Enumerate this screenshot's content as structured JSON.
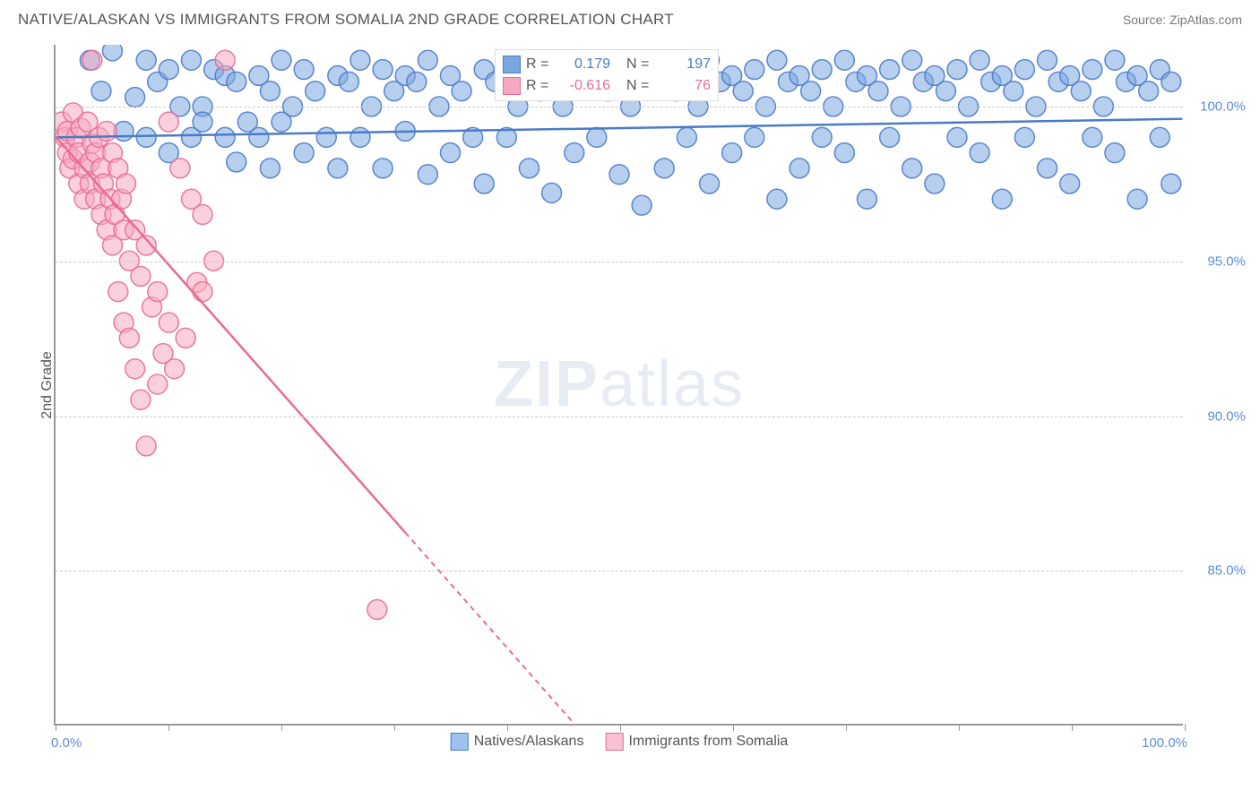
{
  "header": {
    "title": "NATIVE/ALASKAN VS IMMIGRANTS FROM SOMALIA 2ND GRADE CORRELATION CHART",
    "source_prefix": "Source: ",
    "source_link": "ZipAtlas.com"
  },
  "watermark": {
    "zip": "ZIP",
    "atlas": "atlas"
  },
  "chart": {
    "type": "scatter",
    "y_axis_title": "2nd Grade",
    "background_color": "#ffffff",
    "grid_color": "#cccccc",
    "border_color": "#999999",
    "xlim": [
      0,
      100
    ],
    "ylim": [
      80,
      102
    ],
    "xtick_positions": [
      0,
      10,
      20,
      30,
      40,
      50,
      60,
      70,
      80,
      90,
      100
    ],
    "xtick_labels": {
      "0": "0.0%",
      "100": "100.0%"
    },
    "ytick_positions": [
      85,
      90,
      95,
      100
    ],
    "ytick_labels": {
      "85": "85.0%",
      "90": "90.0%",
      "95": "95.0%",
      "100": "100.0%"
    },
    "tick_label_color": "#5b8dd6",
    "tick_label_fontsize": 15,
    "marker_radius": 11,
    "marker_opacity": 0.55,
    "marker_stroke_opacity": 0.9,
    "series": [
      {
        "name": "Natives/Alaskans",
        "color_fill": "#7ba7e0",
        "color_stroke": "#4a7bc8",
        "r_value": "0.179",
        "n_value": "197",
        "trend": {
          "x1": 0,
          "y1": 99.0,
          "x2": 100,
          "y2": 99.6,
          "dashed_from_x": null
        },
        "points": [
          [
            3,
            101.5
          ],
          [
            4,
            100.5
          ],
          [
            5,
            101.8
          ],
          [
            6,
            99.2
          ],
          [
            7,
            100.3
          ],
          [
            8,
            101.5
          ],
          [
            8,
            99.0
          ],
          [
            9,
            100.8
          ],
          [
            10,
            101.2
          ],
          [
            10,
            98.5
          ],
          [
            11,
            100.0
          ],
          [
            12,
            101.5
          ],
          [
            12,
            99.0
          ],
          [
            13,
            100.0
          ],
          [
            13,
            99.5
          ],
          [
            14,
            101.2
          ],
          [
            15,
            101.0
          ],
          [
            15,
            99.0
          ],
          [
            16,
            100.8
          ],
          [
            16,
            98.2
          ],
          [
            17,
            99.5
          ],
          [
            18,
            101.0
          ],
          [
            18,
            99.0
          ],
          [
            19,
            100.5
          ],
          [
            19,
            98.0
          ],
          [
            20,
            101.5
          ],
          [
            20,
            99.5
          ],
          [
            21,
            100.0
          ],
          [
            22,
            101.2
          ],
          [
            22,
            98.5
          ],
          [
            23,
            100.5
          ],
          [
            24,
            99.0
          ],
          [
            25,
            101.0
          ],
          [
            25,
            98.0
          ],
          [
            26,
            100.8
          ],
          [
            27,
            101.5
          ],
          [
            27,
            99.0
          ],
          [
            28,
            100.0
          ],
          [
            29,
            101.2
          ],
          [
            29,
            98.0
          ],
          [
            30,
            100.5
          ],
          [
            31,
            101.0
          ],
          [
            31,
            99.2
          ],
          [
            32,
            100.8
          ],
          [
            33,
            101.5
          ],
          [
            33,
            97.8
          ],
          [
            34,
            100.0
          ],
          [
            35,
            101.0
          ],
          [
            35,
            98.5
          ],
          [
            36,
            100.5
          ],
          [
            37,
            99.0
          ],
          [
            38,
            101.2
          ],
          [
            38,
            97.5
          ],
          [
            39,
            100.8
          ],
          [
            40,
            101.5
          ],
          [
            40,
            99.0
          ],
          [
            41,
            100.0
          ],
          [
            42,
            101.0
          ],
          [
            42,
            98.0
          ],
          [
            43,
            100.5
          ],
          [
            44,
            101.2
          ],
          [
            44,
            97.2
          ],
          [
            45,
            100.0
          ],
          [
            46,
            101.5
          ],
          [
            46,
            98.5
          ],
          [
            47,
            100.8
          ],
          [
            48,
            101.0
          ],
          [
            48,
            99.0
          ],
          [
            49,
            100.5
          ],
          [
            50,
            101.2
          ],
          [
            50,
            97.8
          ],
          [
            51,
            100.0
          ],
          [
            52,
            101.5
          ],
          [
            52,
            96.8
          ],
          [
            53,
            100.8
          ],
          [
            54,
            101.0
          ],
          [
            54,
            98.0
          ],
          [
            55,
            100.5
          ],
          [
            56,
            101.2
          ],
          [
            56,
            99.0
          ],
          [
            57,
            100.0
          ],
          [
            58,
            101.5
          ],
          [
            58,
            97.5
          ],
          [
            59,
            100.8
          ],
          [
            60,
            101.0
          ],
          [
            60,
            98.5
          ],
          [
            61,
            100.5
          ],
          [
            62,
            101.2
          ],
          [
            62,
            99.0
          ],
          [
            63,
            100.0
          ],
          [
            64,
            101.5
          ],
          [
            64,
            97.0
          ],
          [
            65,
            100.8
          ],
          [
            66,
            101.0
          ],
          [
            66,
            98.0
          ],
          [
            67,
            100.5
          ],
          [
            68,
            101.2
          ],
          [
            68,
            99.0
          ],
          [
            69,
            100.0
          ],
          [
            70,
            101.5
          ],
          [
            70,
            98.5
          ],
          [
            71,
            100.8
          ],
          [
            72,
            101.0
          ],
          [
            72,
            97.0
          ],
          [
            73,
            100.5
          ],
          [
            74,
            101.2
          ],
          [
            74,
            99.0
          ],
          [
            75,
            100.0
          ],
          [
            76,
            101.5
          ],
          [
            76,
            98.0
          ],
          [
            77,
            100.8
          ],
          [
            78,
            101.0
          ],
          [
            78,
            97.5
          ],
          [
            79,
            100.5
          ],
          [
            80,
            101.2
          ],
          [
            80,
            99.0
          ],
          [
            81,
            100.0
          ],
          [
            82,
            101.5
          ],
          [
            82,
            98.5
          ],
          [
            83,
            100.8
          ],
          [
            84,
            101.0
          ],
          [
            84,
            97.0
          ],
          [
            85,
            100.5
          ],
          [
            86,
            101.2
          ],
          [
            86,
            99.0
          ],
          [
            87,
            100.0
          ],
          [
            88,
            101.5
          ],
          [
            88,
            98.0
          ],
          [
            89,
            100.8
          ],
          [
            90,
            101.0
          ],
          [
            90,
            97.5
          ],
          [
            91,
            100.5
          ],
          [
            92,
            101.2
          ],
          [
            92,
            99.0
          ],
          [
            93,
            100.0
          ],
          [
            94,
            101.5
          ],
          [
            94,
            98.5
          ],
          [
            95,
            100.8
          ],
          [
            96,
            101.0
          ],
          [
            96,
            97.0
          ],
          [
            97,
            100.5
          ],
          [
            98,
            101.2
          ],
          [
            98,
            99.0
          ],
          [
            99,
            97.5
          ],
          [
            99,
            100.8
          ]
        ]
      },
      {
        "name": "Immigrants from Somalia",
        "color_fill": "#f5a9c0",
        "color_stroke": "#e86b94",
        "r_value": "-0.616",
        "n_value": "76",
        "trend": {
          "x1": 0,
          "y1": 99.0,
          "x2": 46,
          "y2": 80.0,
          "dashed_from_x": 31
        },
        "points": [
          [
            0.5,
            99.5
          ],
          [
            0.8,
            99.0
          ],
          [
            1.0,
            98.5
          ],
          [
            1.0,
            99.2
          ],
          [
            1.2,
            98.0
          ],
          [
            1.5,
            99.8
          ],
          [
            1.5,
            98.3
          ],
          [
            1.8,
            99.0
          ],
          [
            2.0,
            98.5
          ],
          [
            2.0,
            97.5
          ],
          [
            2.2,
            99.3
          ],
          [
            2.5,
            98.0
          ],
          [
            2.5,
            97.0
          ],
          [
            2.8,
            99.5
          ],
          [
            3.0,
            98.2
          ],
          [
            3.0,
            97.5
          ],
          [
            3.2,
            101.5
          ],
          [
            3.2,
            98.8
          ],
          [
            3.5,
            97.0
          ],
          [
            3.5,
            98.5
          ],
          [
            3.8,
            99.0
          ],
          [
            4.0,
            96.5
          ],
          [
            4.0,
            98.0
          ],
          [
            4.2,
            97.5
          ],
          [
            4.5,
            99.2
          ],
          [
            4.5,
            96.0
          ],
          [
            4.8,
            97.0
          ],
          [
            5.0,
            98.5
          ],
          [
            5.0,
            95.5
          ],
          [
            5.2,
            96.5
          ],
          [
            5.5,
            98.0
          ],
          [
            5.5,
            94.0
          ],
          [
            5.8,
            97.0
          ],
          [
            6.0,
            96.0
          ],
          [
            6.0,
            93.0
          ],
          [
            6.2,
            97.5
          ],
          [
            6.5,
            95.0
          ],
          [
            6.5,
            92.5
          ],
          [
            7.0,
            96.0
          ],
          [
            7.0,
            91.5
          ],
          [
            7.5,
            94.5
          ],
          [
            7.5,
            90.5
          ],
          [
            8.0,
            95.5
          ],
          [
            8.0,
            89.0
          ],
          [
            8.5,
            93.5
          ],
          [
            9.0,
            94.0
          ],
          [
            9.0,
            91.0
          ],
          [
            9.5,
            92.0
          ],
          [
            10.0,
            93.0
          ],
          [
            10.0,
            99.5
          ],
          [
            10.5,
            91.5
          ],
          [
            11.0,
            98.0
          ],
          [
            11.5,
            92.5
          ],
          [
            12.0,
            97.0
          ],
          [
            12.5,
            94.3
          ],
          [
            13.0,
            96.5
          ],
          [
            13.0,
            94.0
          ],
          [
            14.0,
            95.0
          ],
          [
            15.0,
            101.5
          ],
          [
            28.5,
            83.7
          ]
        ]
      }
    ],
    "legend_top": {
      "r_label": "R =",
      "n_label": "N ="
    },
    "legend_bottom": [
      {
        "label": "Natives/Alaskans",
        "fill": "#9ec1ed",
        "stroke": "#4a7bc8"
      },
      {
        "label": "Immigrants from Somalia",
        "fill": "#f7c2d4",
        "stroke": "#e86b94"
      }
    ]
  }
}
